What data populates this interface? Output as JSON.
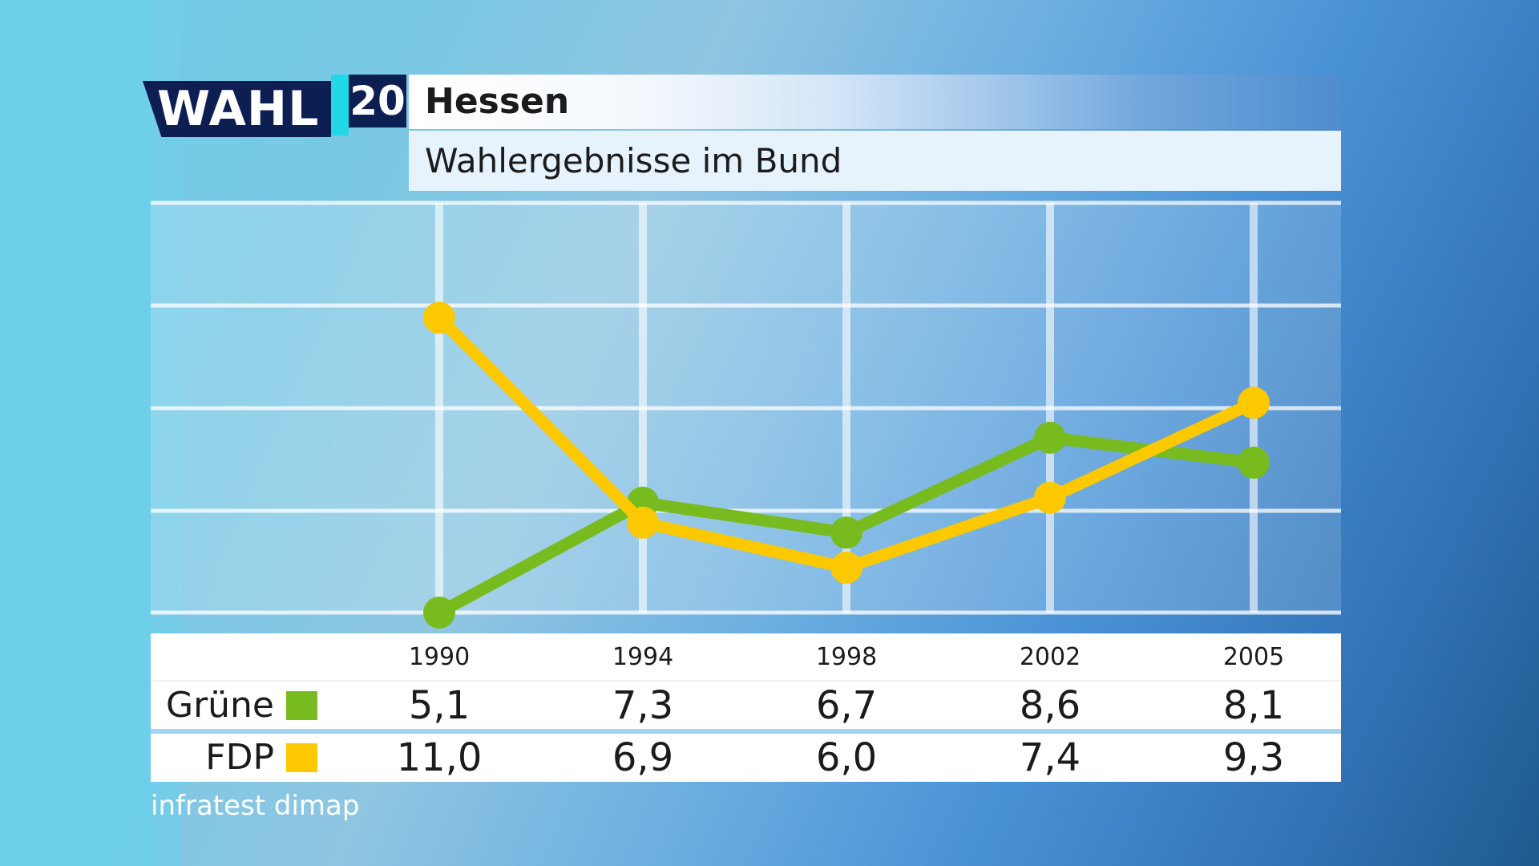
{
  "logo": {
    "text": "WAHL",
    "number": "20"
  },
  "header": {
    "title": "Hessen",
    "subtitle": "Wahlergebnisse im Bund"
  },
  "source": "infratest dimap",
  "colors": {
    "gruene": "#78bb1e",
    "fdp": "#fcc800",
    "navy": "#0d1e52",
    "cyan": "#22d8e6"
  },
  "chart_data": {
    "type": "line",
    "categories": [
      "1990",
      "1994",
      "1998",
      "2002",
      "2005"
    ],
    "series": [
      {
        "name": "Grüne",
        "color": "#78bb1e",
        "values": [
          5.1,
          7.3,
          6.7,
          8.6,
          8.1
        ],
        "labels": [
          "5,1",
          "7,3",
          "6,7",
          "8,6",
          "8,1"
        ]
      },
      {
        "name": "FDP",
        "color": "#fcc800",
        "values": [
          11.0,
          6.9,
          6.0,
          7.4,
          9.3
        ],
        "labels": [
          "11,0",
          "6,9",
          "6,0",
          "7,4",
          "9,3"
        ]
      }
    ],
    "grid": true,
    "legend": "table-below"
  }
}
